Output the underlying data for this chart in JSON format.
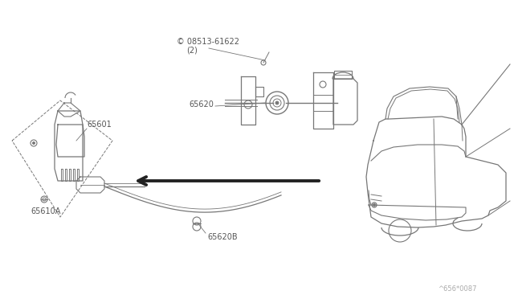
{
  "bg_color": "#ffffff",
  "line_color": "#777777",
  "dark_color": "#222222",
  "label_color": "#555555",
  "fig_width": 6.4,
  "fig_height": 3.72,
  "dpi": 100,
  "watermark": "^656*0087",
  "labels": {
    "part1": "© 08513-61622",
    "part1_sub": "(2)",
    "part2": "65620",
    "part3": "65601",
    "part4": "65610A",
    "part5": "65620B"
  }
}
